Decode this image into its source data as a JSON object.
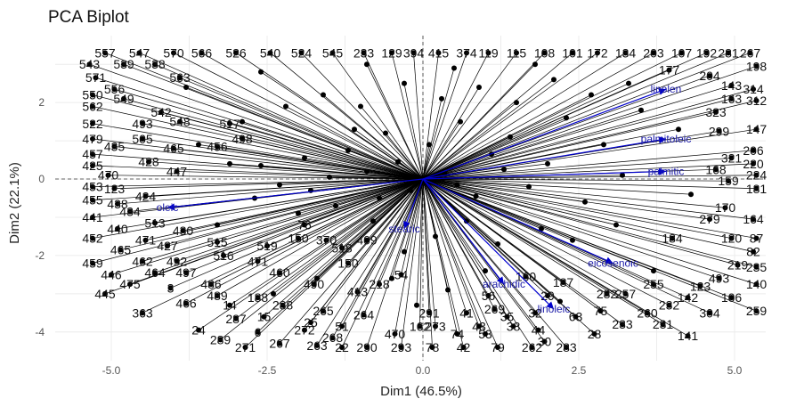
{
  "chart_data": {
    "type": "scatter",
    "title": "PCA Biplot",
    "xlabel": "Dim1 (46.5%)",
    "ylabel": "Dim2 (22.1%)",
    "xlim": [
      -5.9,
      5.5
    ],
    "ylim": [
      -4.75,
      3.75
    ],
    "xticks": [
      -5.0,
      -2.5,
      0.0,
      2.5,
      5.0
    ],
    "xtick_labels": [
      "-5.0",
      "-2.5",
      "0.0",
      "2.5",
      "5.0"
    ],
    "yticks": [
      -4,
      -2,
      0,
      2
    ],
    "ytick_labels": [
      "-4",
      "-2",
      "0",
      "2"
    ],
    "grid": true,
    "colors": {
      "observations": "#000000",
      "variables": "#0000cd",
      "grid": "#ececec"
    },
    "variables": [
      {
        "name": "linolen",
        "x": 3.9,
        "y": 2.35
      },
      {
        "name": "palmitoleic",
        "x": 3.9,
        "y": 1.05
      },
      {
        "name": "palmitic",
        "x": 3.9,
        "y": 0.2
      },
      {
        "name": "oleic",
        "x": -4.1,
        "y": -0.75
      },
      {
        "name": "stearic",
        "x": -0.3,
        "y": -1.3
      },
      {
        "name": "arachidic",
        "x": 1.3,
        "y": -2.75
      },
      {
        "name": "eicosenoic",
        "x": 3.05,
        "y": -2.2
      },
      {
        "name": "linoleic",
        "x": 2.1,
        "y": -3.4
      }
    ],
    "labeled_points": [
      {
        "label": "557",
        "x": -5.1,
        "y": 3.3
      },
      {
        "label": "547",
        "x": -4.55,
        "y": 3.3
      },
      {
        "label": "570",
        "x": -4.0,
        "y": 3.3
      },
      {
        "label": "566",
        "x": -3.55,
        "y": 3.3
      },
      {
        "label": "526",
        "x": -3.0,
        "y": 3.3
      },
      {
        "label": "540",
        "x": -2.45,
        "y": 3.3
      },
      {
        "label": "524",
        "x": -1.95,
        "y": 3.3
      },
      {
        "label": "545",
        "x": -1.45,
        "y": 3.3
      },
      {
        "label": "233",
        "x": -0.95,
        "y": 3.3
      },
      {
        "label": "129",
        "x": -0.5,
        "y": 3.3
      },
      {
        "label": "394",
        "x": -0.15,
        "y": 3.3
      },
      {
        "label": "415",
        "x": 0.25,
        "y": 3.3
      },
      {
        "label": "374",
        "x": 0.7,
        "y": 3.3
      },
      {
        "label": "119",
        "x": 1.05,
        "y": 3.3
      },
      {
        "label": "115",
        "x": 1.5,
        "y": 3.3
      },
      {
        "label": "108",
        "x": 1.95,
        "y": 3.3
      },
      {
        "label": "101",
        "x": 2.4,
        "y": 3.3
      },
      {
        "label": "172",
        "x": 2.8,
        "y": 3.3
      },
      {
        "label": "134",
        "x": 3.25,
        "y": 3.3
      },
      {
        "label": "203",
        "x": 3.7,
        "y": 3.3
      },
      {
        "label": "107",
        "x": 4.15,
        "y": 3.3
      },
      {
        "label": "192",
        "x": 4.55,
        "y": 3.3
      },
      {
        "label": "281",
        "x": 4.9,
        "y": 3.3
      },
      {
        "label": "267",
        "x": 5.25,
        "y": 3.3
      },
      {
        "label": "543",
        "x": -5.35,
        "y": 3.0
      },
      {
        "label": "571",
        "x": -5.25,
        "y": 2.65
      },
      {
        "label": "550",
        "x": -5.3,
        "y": 2.2
      },
      {
        "label": "562",
        "x": -5.3,
        "y": 1.9
      },
      {
        "label": "522",
        "x": -5.3,
        "y": 1.45
      },
      {
        "label": "479",
        "x": -5.3,
        "y": 1.05
      },
      {
        "label": "457",
        "x": -5.3,
        "y": 0.65
      },
      {
        "label": "425",
        "x": -5.3,
        "y": 0.35
      },
      {
        "label": "470",
        "x": -5.05,
        "y": 0.1
      },
      {
        "label": "453",
        "x": -5.3,
        "y": -0.2
      },
      {
        "label": "455",
        "x": -5.3,
        "y": -0.55
      },
      {
        "label": "441",
        "x": -5.3,
        "y": -1.0
      },
      {
        "label": "452",
        "x": -5.3,
        "y": -1.55
      },
      {
        "label": "459",
        "x": -5.3,
        "y": -2.2
      },
      {
        "label": "446",
        "x": -5.0,
        "y": -2.5
      },
      {
        "label": "445",
        "x": -5.1,
        "y": -3.0
      },
      {
        "label": "465",
        "x": -4.85,
        "y": -1.85
      },
      {
        "label": "440",
        "x": -4.9,
        "y": -1.3
      },
      {
        "label": "428",
        "x": -4.4,
        "y": 0.45
      },
      {
        "label": "435",
        "x": -4.95,
        "y": 0.85
      },
      {
        "label": "505",
        "x": -4.5,
        "y": 1.05
      },
      {
        "label": "493",
        "x": -4.5,
        "y": 1.45
      },
      {
        "label": "475",
        "x": -4.7,
        "y": -2.75
      },
      {
        "label": "363",
        "x": -4.5,
        "y": -3.5
      },
      {
        "label": "3",
        "x": -4.05,
        "y": -2.85
      },
      {
        "label": "466",
        "x": -3.8,
        "y": -3.25
      },
      {
        "label": "489",
        "x": -3.3,
        "y": -3.05
      },
      {
        "label": "14",
        "x": -3.1,
        "y": -3.3
      },
      {
        "label": "24",
        "x": -3.6,
        "y": -3.95
      },
      {
        "label": "287",
        "x": -3.0,
        "y": -3.65
      },
      {
        "label": "289",
        "x": -3.25,
        "y": -4.2
      },
      {
        "label": "271",
        "x": -2.85,
        "y": -4.4
      },
      {
        "label": "6",
        "x": -2.65,
        "y": -4.0
      },
      {
        "label": "267",
        "x": -2.3,
        "y": -4.3
      },
      {
        "label": "272",
        "x": -1.9,
        "y": -3.95
      },
      {
        "label": "263",
        "x": -1.7,
        "y": -4.35
      },
      {
        "label": "22",
        "x": -1.3,
        "y": -4.4
      },
      {
        "label": "290",
        "x": -0.9,
        "y": -4.4
      },
      {
        "label": "293",
        "x": -0.35,
        "y": -4.4
      },
      {
        "label": "78",
        "x": 0.15,
        "y": -4.4
      },
      {
        "label": "42",
        "x": 0.65,
        "y": -4.4
      },
      {
        "label": "79",
        "x": 1.2,
        "y": -4.4
      },
      {
        "label": "262",
        "x": 1.75,
        "y": -4.4
      },
      {
        "label": "283",
        "x": 2.3,
        "y": -4.4
      },
      {
        "label": "28",
        "x": 2.75,
        "y": -4.05
      },
      {
        "label": "233",
        "x": 3.2,
        "y": -3.8
      },
      {
        "label": "231",
        "x": 3.85,
        "y": -3.8
      },
      {
        "label": "141",
        "x": 4.25,
        "y": -4.1
      },
      {
        "label": "260",
        "x": 3.6,
        "y": -3.5
      },
      {
        "label": "232",
        "x": 3.95,
        "y": -3.3
      },
      {
        "label": "304",
        "x": 4.6,
        "y": -3.5
      },
      {
        "label": "259",
        "x": 5.35,
        "y": -3.45
      },
      {
        "label": "142",
        "x": 4.25,
        "y": -3.1
      },
      {
        "label": "106",
        "x": 4.95,
        "y": -3.1
      },
      {
        "label": "140",
        "x": 5.35,
        "y": -2.75
      },
      {
        "label": "235",
        "x": 5.35,
        "y": -2.3
      },
      {
        "label": "82",
        "x": 5.3,
        "y": -1.9
      },
      {
        "label": "87",
        "x": 5.35,
        "y": -1.55
      },
      {
        "label": "164",
        "x": 5.3,
        "y": -1.05
      },
      {
        "label": "181",
        "x": 5.35,
        "y": -0.25
      },
      {
        "label": "224",
        "x": 5.35,
        "y": 0.1
      },
      {
        "label": "220",
        "x": 5.3,
        "y": 0.4
      },
      {
        "label": "206",
        "x": 5.3,
        "y": 0.75
      },
      {
        "label": "147",
        "x": 5.35,
        "y": 1.3
      },
      {
        "label": "314",
        "x": 5.3,
        "y": 2.35
      },
      {
        "label": "312",
        "x": 5.35,
        "y": 2.05
      },
      {
        "label": "198",
        "x": 5.35,
        "y": 2.95
      },
      {
        "label": "219",
        "x": 5.05,
        "y": -2.25
      },
      {
        "label": "493",
        "x": 4.75,
        "y": -2.6
      },
      {
        "label": "123",
        "x": 4.45,
        "y": -2.8
      },
      {
        "label": "255",
        "x": 3.7,
        "y": -2.75
      },
      {
        "label": "257",
        "x": 3.25,
        "y": -3.0
      },
      {
        "label": "282",
        "x": 2.95,
        "y": -3.0
      },
      {
        "label": "75",
        "x": 2.85,
        "y": -3.45
      },
      {
        "label": "63",
        "x": 2.45,
        "y": -3.6
      },
      {
        "label": "44",
        "x": 1.85,
        "y": -3.95
      },
      {
        "label": "30",
        "x": 1.95,
        "y": -4.25
      },
      {
        "label": "53",
        "x": 1.0,
        "y": -4.05
      },
      {
        "label": "74",
        "x": 0.55,
        "y": -4.05
      },
      {
        "label": "273",
        "x": 0.2,
        "y": -3.85
      },
      {
        "label": "291",
        "x": 0.1,
        "y": -3.5
      },
      {
        "label": "41",
        "x": 0.7,
        "y": -3.5
      },
      {
        "label": "35",
        "x": 1.35,
        "y": -3.6
      },
      {
        "label": "38",
        "x": 1.45,
        "y": -3.85
      },
      {
        "label": "269",
        "x": 1.15,
        "y": -3.4
      },
      {
        "label": "32",
        "x": 1.8,
        "y": -3.5
      },
      {
        "label": "56",
        "x": 1.05,
        "y": -3.05
      },
      {
        "label": "29",
        "x": 2.0,
        "y": -3.05
      },
      {
        "label": "43",
        "x": 0.9,
        "y": -3.85
      },
      {
        "label": "162",
        "x": -0.05,
        "y": -3.85
      },
      {
        "label": "470",
        "x": -0.45,
        "y": -4.05
      },
      {
        "label": "51",
        "x": -1.3,
        "y": -3.85
      },
      {
        "label": "268",
        "x": -1.45,
        "y": -4.15
      },
      {
        "label": "264",
        "x": -0.95,
        "y": -3.55
      },
      {
        "label": "265",
        "x": -1.6,
        "y": -3.45
      },
      {
        "label": "25",
        "x": -1.8,
        "y": -3.75
      },
      {
        "label": "15",
        "x": -2.55,
        "y": -3.6
      },
      {
        "label": "288",
        "x": -2.25,
        "y": -3.3
      },
      {
        "label": "188",
        "x": -2.65,
        "y": -3.1
      },
      {
        "label": "486",
        "x": -3.4,
        "y": -2.75
      },
      {
        "label": "464",
        "x": -4.3,
        "y": -2.45
      },
      {
        "label": "497",
        "x": -3.8,
        "y": -2.45
      },
      {
        "label": "462",
        "x": -4.5,
        "y": -2.15
      },
      {
        "label": "492",
        "x": -3.95,
        "y": -2.15
      },
      {
        "label": "471",
        "x": -4.45,
        "y": -1.6
      },
      {
        "label": "427",
        "x": -4.1,
        "y": -1.75
      },
      {
        "label": "430",
        "x": -3.85,
        "y": -1.35
      },
      {
        "label": "513",
        "x": -4.3,
        "y": -1.15
      },
      {
        "label": "434",
        "x": -4.7,
        "y": -0.85
      },
      {
        "label": "438",
        "x": -4.9,
        "y": -0.65
      },
      {
        "label": "424",
        "x": -4.45,
        "y": -0.45
      },
      {
        "label": "123",
        "x": -4.95,
        "y": -0.25
      },
      {
        "label": "447",
        "x": -3.95,
        "y": 0.2
      },
      {
        "label": "465",
        "x": -4.0,
        "y": 0.8
      },
      {
        "label": "456",
        "x": -3.3,
        "y": 0.85
      },
      {
        "label": "498",
        "x": -2.9,
        "y": 1.05
      },
      {
        "label": "517",
        "x": -3.1,
        "y": 1.45
      },
      {
        "label": "548",
        "x": -3.9,
        "y": 1.5
      },
      {
        "label": "542",
        "x": -4.2,
        "y": 1.75
      },
      {
        "label": "549",
        "x": -4.8,
        "y": 2.1
      },
      {
        "label": "556",
        "x": -4.95,
        "y": 2.35
      },
      {
        "label": "538",
        "x": -4.3,
        "y": 3.0
      },
      {
        "label": "539",
        "x": -4.8,
        "y": 3.0
      },
      {
        "label": "563",
        "x": -3.9,
        "y": 2.65
      },
      {
        "label": "515",
        "x": -3.3,
        "y": -1.65
      },
      {
        "label": "516",
        "x": -3.2,
        "y": -2.0
      },
      {
        "label": "519",
        "x": -2.5,
        "y": -1.75
      },
      {
        "label": "471",
        "x": -2.65,
        "y": -2.15
      },
      {
        "label": "460",
        "x": -2.3,
        "y": -2.45
      },
      {
        "label": "490",
        "x": -1.75,
        "y": -2.75
      },
      {
        "label": "413",
        "x": -1.05,
        "y": -2.95
      },
      {
        "label": "218",
        "x": -0.7,
        "y": -2.75
      },
      {
        "label": "54",
        "x": -0.35,
        "y": -2.5
      },
      {
        "label": "150",
        "x": -1.2,
        "y": -2.2
      },
      {
        "label": "518",
        "x": -1.3,
        "y": -1.8
      },
      {
        "label": "409",
        "x": -0.9,
        "y": -1.6
      },
      {
        "label": "370",
        "x": -1.55,
        "y": -1.6
      },
      {
        "label": "150",
        "x": -2.0,
        "y": -1.55
      },
      {
        "label": "76",
        "x": -1.9,
        "y": -1.2
      },
      {
        "label": "160",
        "x": 1.65,
        "y": -2.55
      },
      {
        "label": "187",
        "x": 2.25,
        "y": -2.7
      },
      {
        "label": "184",
        "x": 4.0,
        "y": -1.55
      },
      {
        "label": "120",
        "x": 4.95,
        "y": -1.55
      },
      {
        "label": "279",
        "x": 4.6,
        "y": -1.05
      },
      {
        "label": "170",
        "x": 4.85,
        "y": -0.75
      },
      {
        "label": "159",
        "x": 4.9,
        "y": -0.05
      },
      {
        "label": "168",
        "x": 4.7,
        "y": 0.25
      },
      {
        "label": "321",
        "x": 4.95,
        "y": 0.55
      },
      {
        "label": "299",
        "x": 4.75,
        "y": 1.25
      },
      {
        "label": "323",
        "x": 4.7,
        "y": 1.75
      },
      {
        "label": "163",
        "x": 4.95,
        "y": 2.1
      },
      {
        "label": "143",
        "x": 4.95,
        "y": 2.45
      },
      {
        "label": "204",
        "x": 4.6,
        "y": 2.7
      },
      {
        "label": "177",
        "x": 3.95,
        "y": 2.85
      }
    ],
    "unlabeled_points": [
      {
        "x": -2.6,
        "y": 0.35
      },
      {
        "x": -2.3,
        "y": -0.15
      },
      {
        "x": -1.9,
        "y": 0.55
      },
      {
        "x": -1.5,
        "y": 0.05
      },
      {
        "x": -1.2,
        "y": 0.75
      },
      {
        "x": -0.9,
        "y": 0.2
      },
      {
        "x": -0.6,
        "y": 1.2
      },
      {
        "x": -0.4,
        "y": 0.45
      },
      {
        "x": -0.2,
        "y": -0.3
      },
      {
        "x": 0.1,
        "y": 0.9
      },
      {
        "x": 0.35,
        "y": 0.15
      },
      {
        "x": 0.6,
        "y": 1.5
      },
      {
        "x": 0.85,
        "y": -0.45
      },
      {
        "x": 1.1,
        "y": 0.65
      },
      {
        "x": 1.4,
        "y": 1.1
      },
      {
        "x": 1.7,
        "y": -0.2
      },
      {
        "x": 2.0,
        "y": 0.4
      },
      {
        "x": 2.3,
        "y": 1.6
      },
      {
        "x": 2.6,
        "y": -0.6
      },
      {
        "x": 2.9,
        "y": 0.9
      },
      {
        "x": 3.2,
        "y": 0.1
      },
      {
        "x": 3.5,
        "y": 1.8
      },
      {
        "x": 3.1,
        "y": -1.2
      },
      {
        "x": 2.4,
        "y": -1.6
      },
      {
        "x": 1.9,
        "y": -1.3
      },
      {
        "x": 1.2,
        "y": -1.7
      },
      {
        "x": 0.7,
        "y": -1.1
      },
      {
        "x": 0.2,
        "y": -1.5
      },
      {
        "x": -0.3,
        "y": -1.9
      },
      {
        "x": -0.8,
        "y": -1.1
      },
      {
        "x": -1.4,
        "y": -0.7
      },
      {
        "x": -2.0,
        "y": -0.9
      },
      {
        "x": -2.7,
        "y": -0.5
      },
      {
        "x": -3.1,
        "y": 0.4
      },
      {
        "x": -2.9,
        "y": 1.5
      },
      {
        "x": -2.2,
        "y": 1.9
      },
      {
        "x": -1.6,
        "y": 2.2
      },
      {
        "x": -1.0,
        "y": 1.9
      },
      {
        "x": -0.3,
        "y": 2.5
      },
      {
        "x": 0.3,
        "y": 2.1
      },
      {
        "x": 0.9,
        "y": 2.4
      },
      {
        "x": 1.5,
        "y": 2.0
      },
      {
        "x": 2.1,
        "y": 2.6
      },
      {
        "x": 2.7,
        "y": 2.2
      },
      {
        "x": 3.3,
        "y": 2.5
      },
      {
        "x": -0.5,
        "y": -2.6
      },
      {
        "x": 0.4,
        "y": -2.9
      },
      {
        "x": 1.0,
        "y": -2.4
      },
      {
        "x": -1.7,
        "y": -2.6
      },
      {
        "x": -2.4,
        "y": -3.0
      },
      {
        "x": -3.3,
        "y": -1.2
      },
      {
        "x": -3.6,
        "y": 0.9
      },
      {
        "x": -3.8,
        "y": 2.4
      },
      {
        "x": -2.6,
        "y": 2.8
      },
      {
        "x": -0.9,
        "y": 3.0
      },
      {
        "x": 0.5,
        "y": 2.9
      },
      {
        "x": 1.8,
        "y": 3.0
      },
      {
        "x": 4.1,
        "y": 1.3
      },
      {
        "x": 4.3,
        "y": -0.4
      },
      {
        "x": 3.7,
        "y": -2.4
      },
      {
        "x": 2.2,
        "y": -3.2
      },
      {
        "x": -0.1,
        "y": -3.3
      },
      {
        "x": -1.1,
        "y": 1.3
      },
      {
        "x": 0.0,
        "y": 0.0
      },
      {
        "x": 0.55,
        "y": -0.15
      },
      {
        "x": -0.7,
        "y": -0.5
      },
      {
        "x": 1.3,
        "y": 0.25
      },
      {
        "x": -1.8,
        "y": -0.3
      }
    ]
  }
}
